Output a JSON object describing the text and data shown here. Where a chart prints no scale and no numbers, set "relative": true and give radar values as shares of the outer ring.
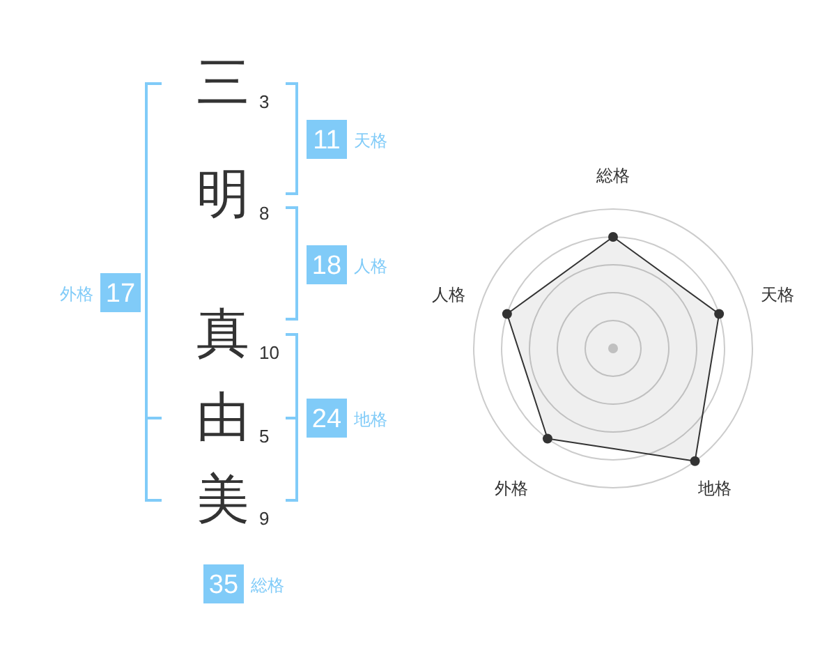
{
  "chart_data": [
    {
      "type": "other",
      "categories": [
        "三",
        "明",
        "真",
        "由",
        "美"
      ],
      "values": [
        3,
        8,
        10,
        5,
        9
      ],
      "data_labels": true,
      "color": "#333333"
    },
    {
      "type": "other",
      "categories": [
        "天格",
        "人格",
        "地格",
        "外格",
        "総格"
      ],
      "values": [
        11,
        18,
        24,
        17,
        35
      ],
      "data_labels": true,
      "color": "#80cbf8"
    },
    {
      "type": "radar",
      "categories": [
        "総格",
        "天格",
        "地格",
        "外格",
        "人格"
      ],
      "relative": true,
      "grid": true,
      "marker": "circle",
      "series": [
        {
          "color": "#333333",
          "values": [
            0.8,
            0.8,
            1,
            0.8,
            0.8
          ]
        }
      ]
    }
  ]
}
